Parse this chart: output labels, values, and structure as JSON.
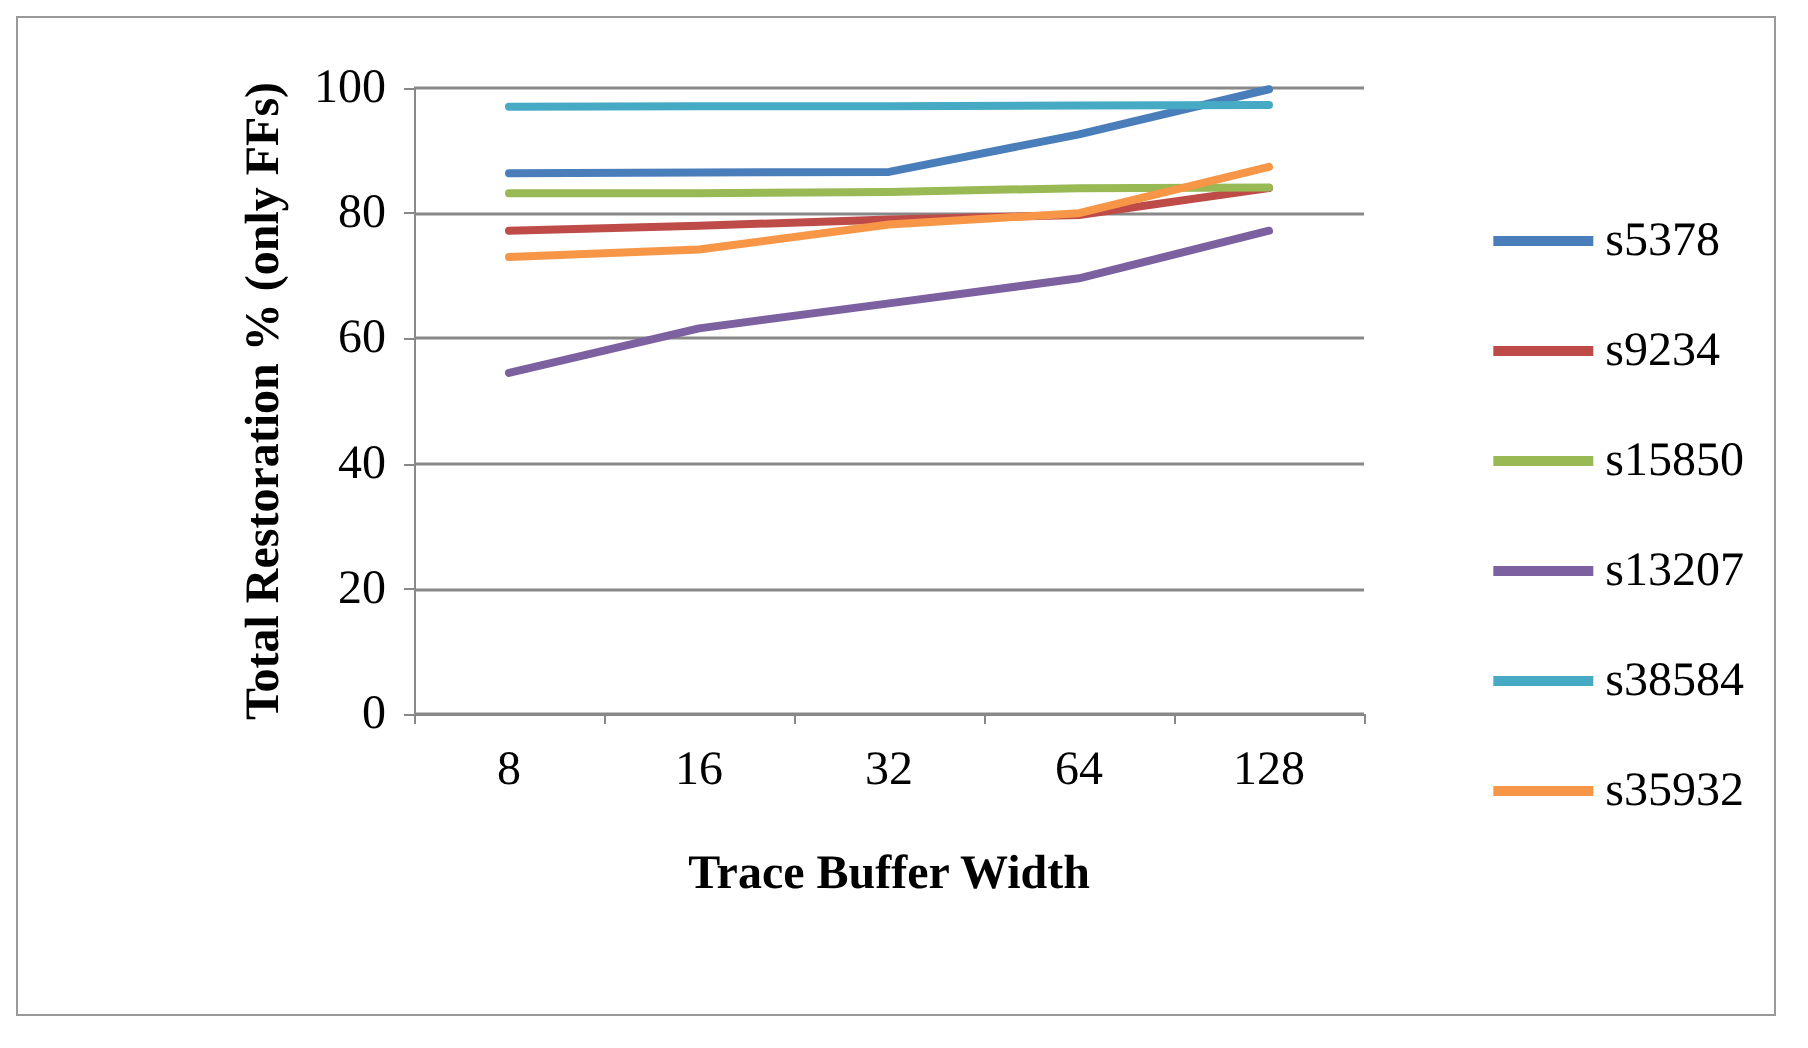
{
  "chart_data": {
    "type": "line",
    "xlabel": "Trace Buffer Width",
    "ylabel": "Total Restoration % (only FFs)",
    "categories": [
      "8",
      "16",
      "32",
      "64",
      "128"
    ],
    "series": [
      {
        "name": "s5378",
        "color": "#4a7ebb",
        "values": [
          86.4,
          86.5,
          86.6,
          92.6,
          99.8
        ]
      },
      {
        "name": "s9234",
        "color": "#be4b48",
        "values": [
          77.2,
          78,
          79,
          79.7,
          84
        ]
      },
      {
        "name": "s15850",
        "color": "#98b954",
        "values": [
          83.2,
          83.2,
          83.4,
          84,
          84.1
        ]
      },
      {
        "name": "s13207",
        "color": "#7d60a0",
        "values": [
          54.5,
          61.6,
          65.6,
          69.6,
          77.2
        ]
      },
      {
        "name": "s38584",
        "color": "#46aac5",
        "values": [
          97,
          97.1,
          97.1,
          97.2,
          97.3
        ]
      },
      {
        "name": "s35932",
        "color": "#f79646",
        "values": [
          73,
          74.2,
          78.2,
          80,
          87.4
        ]
      }
    ],
    "ylim": [
      0,
      100
    ],
    "yticks": [
      0,
      20,
      40,
      60,
      80,
      100
    ],
    "grid": "y",
    "legend": "right",
    "marker": "none",
    "line_style": "solid"
  }
}
